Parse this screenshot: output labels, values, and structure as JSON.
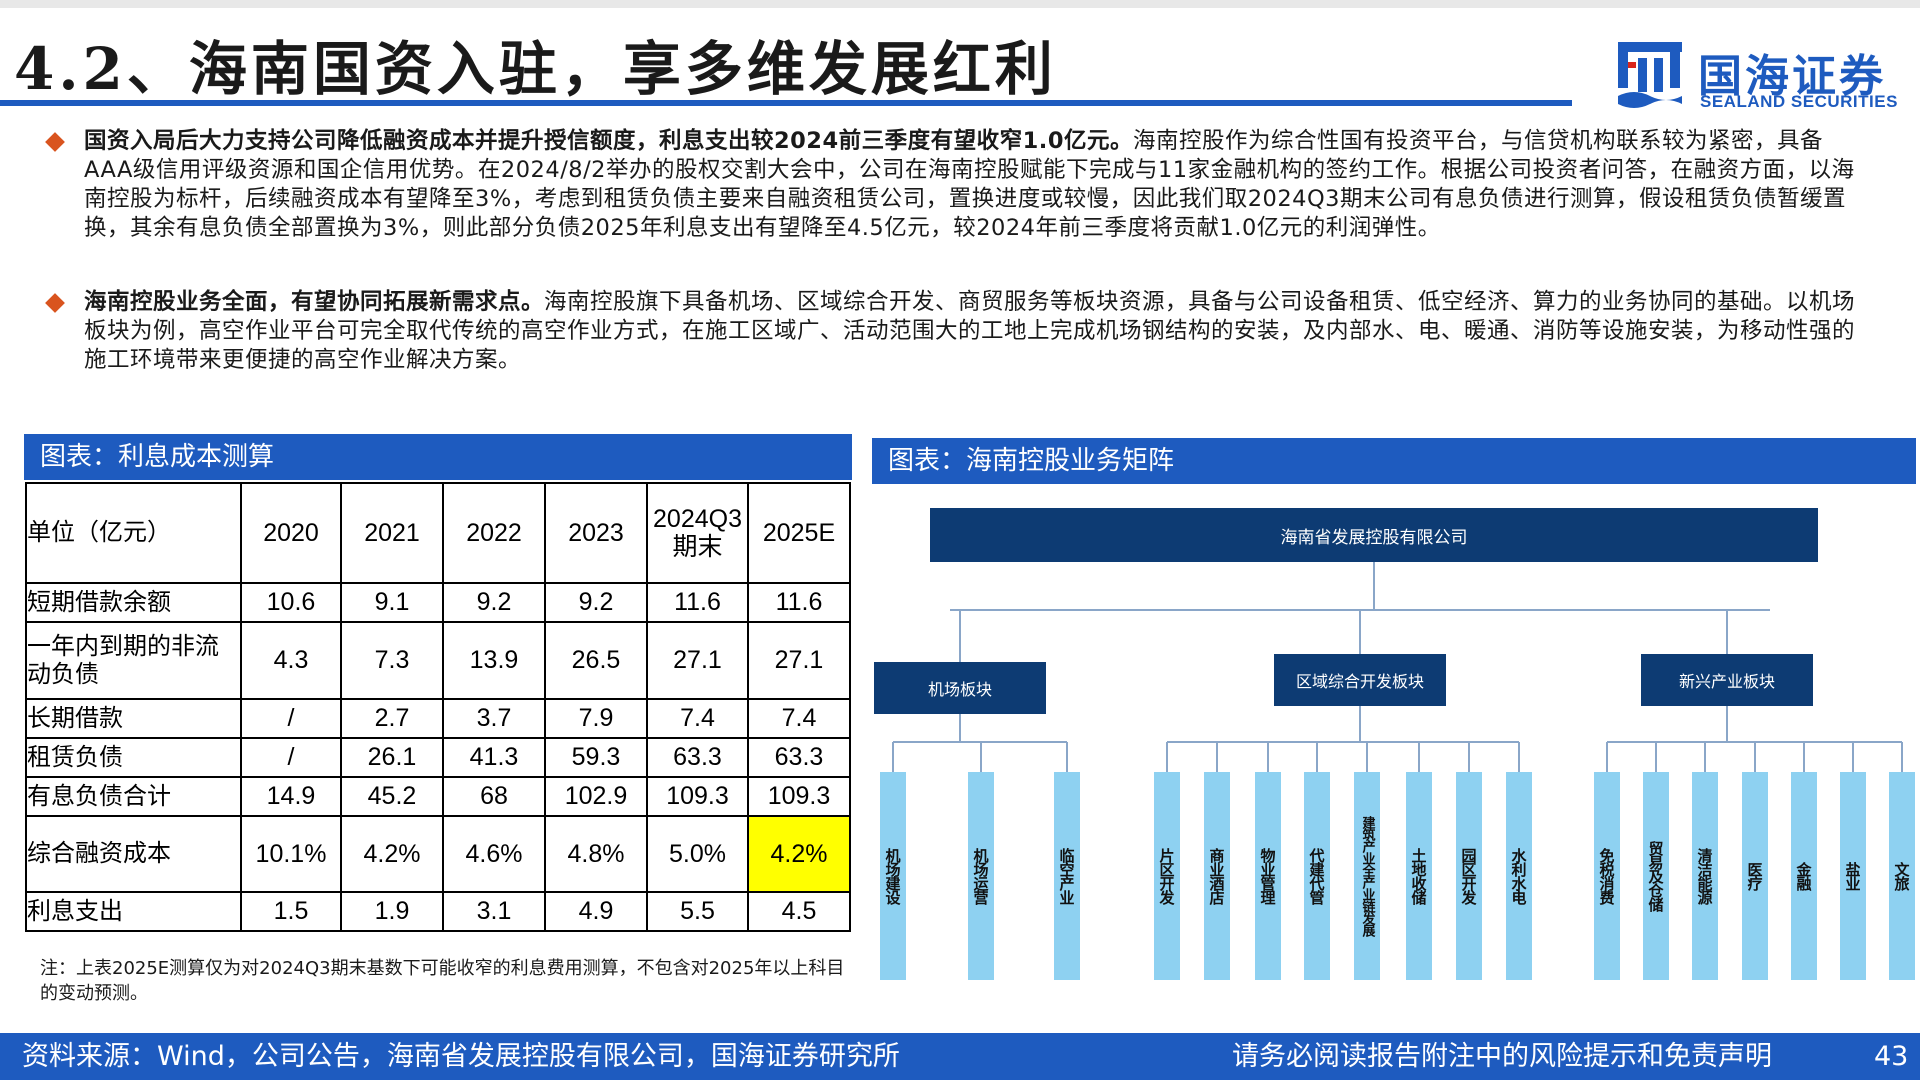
{
  "header": {
    "title": "4.2、海南国资入驻，享多维发展红利",
    "logo_cn": "国海证券",
    "logo_en": "SEALAND SECURITIES"
  },
  "bullets": [
    {
      "bold": "国资入局后大力支持公司降低融资成本并提升授信额度，利息支出较2024前三季度有望收窄1.0亿元。",
      "text": "海南控股作为综合性国有投资平台，与信贷机构联系较为紧密，具备AAA级信用评级资源和国企信用优势。在2024/8/2举办的股权交割大会中，公司在海南控股赋能下完成与11家金融机构的签约工作。根据公司投资者问答，在融资方面，以海南控股为标杆，后续融资成本有望降至3%，考虑到租赁负债主要来自融资租赁公司，置换进度或较慢，因此我们取2024Q3期末公司有息负债进行测算，假设租赁负债暂缓置换，其余有息负债全部置换为3%，则此部分负债2025年利息支出有望降至4.5亿元，较2024年前三季度将贡献1.0亿元的利润弹性。"
    },
    {
      "bold": "海南控股业务全面，有望协同拓展新需求点。",
      "text": "海南控股旗下具备机场、区域综合开发、商贸服务等板块资源，具备与公司设备租赁、低空经济、算力的业务协同的基础。以机场板块为例，高空作业平台可完全取代传统的高空作业方式，在施工区域广、活动范围大的工地上完成机场钢结构的安装，及内部水、电、暖通、消防等设施安装，为移动性强的施工环境带来更便捷的高空作业解决方案。"
    }
  ],
  "table_panel": {
    "title": "图表：利息成本测算",
    "columns": [
      "单位（亿元）",
      "2020",
      "2021",
      "2022",
      "2023",
      "2024Q3期末",
      "2025E"
    ],
    "rows": [
      {
        "label": "短期借款余额",
        "values": [
          "10.6",
          "9.1",
          "9.2",
          "9.2",
          "11.6",
          "11.6"
        ]
      },
      {
        "label": "一年内到期的非流动负债",
        "values": [
          "4.3",
          "7.3",
          "13.9",
          "26.5",
          "27.1",
          "27.1"
        ]
      },
      {
        "label": "长期借款",
        "values": [
          "/",
          "2.7",
          "3.7",
          "7.9",
          "7.4",
          "7.4"
        ]
      },
      {
        "label": "租赁负债",
        "values": [
          "/",
          "26.1",
          "41.3",
          "59.3",
          "63.3",
          "63.3"
        ]
      },
      {
        "label": "有息负债合计",
        "values": [
          "14.9",
          "45.2",
          "68",
          "102.9",
          "109.3",
          "109.3"
        ]
      },
      {
        "label": "综合融资成本",
        "values": [
          "10.1%",
          "4.2%",
          "4.6%",
          "4.8%",
          "5.0%",
          "4.2%"
        ]
      },
      {
        "label": "利息支出",
        "values": [
          "1.5",
          "1.9",
          "3.1",
          "4.9",
          "5.5",
          "4.5"
        ]
      }
    ],
    "highlight_color": "#ffff00",
    "note": "注：上表2025E测算仅为对2024Q3期末基数下可能收窄的利息费用测算，不包含对2025年以上科目的变动预测。"
  },
  "org_panel": {
    "title": "图表：海南控股业务矩阵",
    "root": "海南省发展控股有限公司",
    "segments": [
      {
        "name": "机场板块",
        "children": [
          "机场建设",
          "机场运营",
          "临空产业"
        ]
      },
      {
        "name": "区域综合开发板块",
        "children": [
          "片区开发",
          "商业酒店",
          "物业管理",
          "代建代管",
          "建筑产业全产业链发展",
          "土地收储",
          "园区开发",
          "水利水电"
        ]
      },
      {
        "name": "新兴产业板块",
        "children": [
          "免税消费",
          "贸易及仓储",
          "清洁能源",
          "医疗",
          "金融",
          "盐业",
          "文旅"
        ]
      }
    ],
    "box_color": "#0d3b73",
    "leaf_color": "#8ed1f1"
  },
  "footer": {
    "source": "资料来源：Wind，公司公告，海南省发展控股有限公司，国海证券研究所",
    "disclaimer": "请务必阅读报告附注中的风险提示和免责声明",
    "page": "43"
  },
  "colors": {
    "brand_blue": "#1e5bbf",
    "bullet": "#d9541e"
  }
}
